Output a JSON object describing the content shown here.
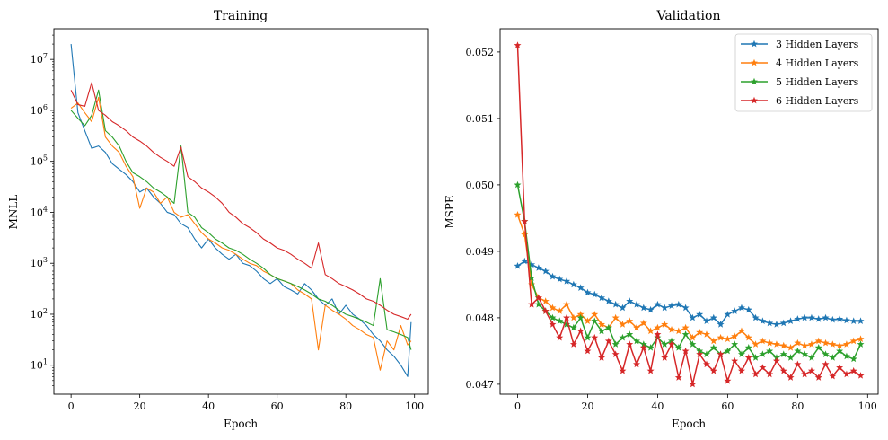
{
  "chart_data": [
    {
      "type": "line",
      "title": "Training",
      "xlabel": "Epoch",
      "ylabel": "MNLL",
      "yscale": "log",
      "xlim": [
        -5,
        104
      ],
      "ylim": [
        2.7,
        40000000
      ],
      "xticks": [
        0,
        20,
        40,
        60,
        80,
        100
      ],
      "yticks": [
        {
          "value": 10,
          "base": "10",
          "exp": "1"
        },
        {
          "value": 100,
          "base": "10",
          "exp": "2"
        },
        {
          "value": 1000,
          "base": "10",
          "exp": "3"
        },
        {
          "value": 10000,
          "base": "10",
          "exp": "4"
        },
        {
          "value": 100000,
          "base": "10",
          "exp": "5"
        },
        {
          "value": 1000000,
          "base": "10",
          "exp": "6"
        },
        {
          "value": 10000000,
          "base": "10",
          "exp": "7"
        }
      ],
      "series": [
        {
          "name": "3 Hidden Layers",
          "color": "#1f77b4",
          "x": [
            0,
            2,
            4,
            6,
            8,
            10,
            12,
            14,
            16,
            18,
            20,
            22,
            24,
            26,
            28,
            30,
            32,
            34,
            36,
            38,
            40,
            42,
            44,
            46,
            48,
            50,
            52,
            54,
            56,
            58,
            60,
            62,
            64,
            66,
            68,
            70,
            72,
            74,
            76,
            78,
            80,
            82,
            84,
            86,
            88,
            90,
            92,
            94,
            96,
            98,
            99
          ],
          "values": [
            20000000,
            900000,
            400000,
            180000,
            200000,
            150000,
            90000,
            70000,
            55000,
            40000,
            25000,
            30000,
            20000,
            15000,
            10000,
            9000,
            6000,
            5000,
            3000,
            2000,
            3000,
            2000,
            1500,
            1200,
            1500,
            1000,
            900,
            700,
            500,
            400,
            500,
            350,
            300,
            250,
            400,
            300,
            200,
            150,
            200,
            100,
            150,
            100,
            80,
            60,
            40,
            30,
            20,
            15,
            10,
            6,
            70
          ]
        },
        {
          "name": "4 Hidden Layers",
          "color": "#ff7f0e",
          "x": [
            0,
            2,
            4,
            6,
            8,
            10,
            12,
            14,
            16,
            18,
            20,
            22,
            24,
            26,
            28,
            30,
            32,
            34,
            36,
            38,
            40,
            42,
            44,
            46,
            48,
            50,
            52,
            54,
            56,
            58,
            60,
            62,
            64,
            66,
            68,
            70,
            72,
            74,
            76,
            78,
            80,
            82,
            84,
            86,
            88,
            90,
            92,
            94,
            96,
            98,
            99
          ],
          "values": [
            1100000,
            1400000,
            900000,
            600000,
            1800000,
            300000,
            200000,
            150000,
            80000,
            50000,
            12000,
            30000,
            25000,
            15000,
            20000,
            10000,
            8000,
            9000,
            6000,
            4000,
            3000,
            2500,
            2000,
            1800,
            1500,
            1200,
            1000,
            900,
            700,
            600,
            500,
            450,
            400,
            300,
            250,
            200,
            20,
            150,
            120,
            100,
            80,
            60,
            50,
            40,
            35,
            8,
            30,
            20,
            60,
            25,
            30
          ]
        },
        {
          "name": "5 Hidden Layers",
          "color": "#2ca02c",
          "x": [
            0,
            2,
            4,
            6,
            8,
            10,
            12,
            14,
            16,
            18,
            20,
            22,
            24,
            26,
            28,
            30,
            32,
            34,
            36,
            38,
            40,
            42,
            44,
            46,
            48,
            50,
            52,
            54,
            56,
            58,
            60,
            62,
            64,
            66,
            68,
            70,
            72,
            74,
            76,
            78,
            80,
            82,
            84,
            86,
            88,
            90,
            92,
            94,
            96,
            98,
            99
          ],
          "values": [
            1000000,
            700000,
            500000,
            800000,
            2500000,
            400000,
            300000,
            200000,
            100000,
            60000,
            50000,
            40000,
            30000,
            25000,
            20000,
            15000,
            200000,
            10000,
            8000,
            5000,
            4000,
            3000,
            2500,
            2000,
            1800,
            1500,
            1200,
            1000,
            800,
            600,
            500,
            450,
            400,
            350,
            300,
            250,
            200,
            180,
            150,
            120,
            100,
            90,
            80,
            70,
            60,
            500,
            50,
            45,
            40,
            35,
            20
          ]
        },
        {
          "name": "6 Hidden Layers",
          "color": "#d62728",
          "x": [
            0,
            2,
            4,
            6,
            8,
            10,
            12,
            14,
            16,
            18,
            20,
            22,
            24,
            26,
            28,
            30,
            32,
            34,
            36,
            38,
            40,
            42,
            44,
            46,
            48,
            50,
            52,
            54,
            56,
            58,
            60,
            62,
            64,
            66,
            68,
            70,
            72,
            74,
            76,
            78,
            80,
            82,
            84,
            86,
            88,
            90,
            92,
            94,
            96,
            98,
            99
          ],
          "values": [
            2500000,
            1300000,
            1200000,
            3500000,
            1000000,
            800000,
            600000,
            500000,
            400000,
            300000,
            250000,
            200000,
            150000,
            120000,
            100000,
            80000,
            190000,
            50000,
            40000,
            30000,
            25000,
            20000,
            15000,
            10000,
            8000,
            6000,
            5000,
            4000,
            3000,
            2500,
            2000,
            1800,
            1500,
            1200,
            1000,
            800,
            2500,
            600,
            500,
            400,
            350,
            300,
            250,
            200,
            180,
            150,
            120,
            100,
            90,
            80,
            100
          ]
        }
      ]
    },
    {
      "type": "line",
      "title": "Validation",
      "xlabel": "Epoch",
      "ylabel": "MSPE",
      "xlim": [
        -5,
        103
      ],
      "ylim": [
        0.04685,
        0.05235
      ],
      "xticks": [
        0,
        20,
        40,
        60,
        80,
        100
      ],
      "yticks": [
        0.047,
        0.048,
        0.049,
        0.05,
        0.051,
        0.052
      ],
      "yticklabels": [
        "0.047",
        "0.048",
        "0.049",
        "0.050",
        "0.051",
        "0.052"
      ],
      "legend_position": "top-right",
      "marker": "star",
      "series": [
        {
          "name": "3 Hidden Layers",
          "color": "#1f77b4",
          "x": [
            0,
            2,
            4,
            6,
            8,
            10,
            12,
            14,
            16,
            18,
            20,
            22,
            24,
            26,
            28,
            30,
            32,
            34,
            36,
            38,
            40,
            42,
            44,
            46,
            48,
            50,
            52,
            54,
            56,
            58,
            60,
            62,
            64,
            66,
            68,
            70,
            72,
            74,
            76,
            78,
            80,
            82,
            84,
            86,
            88,
            90,
            92,
            94,
            96,
            98
          ],
          "values": [
            0.04878,
            0.04885,
            0.0488,
            0.04875,
            0.0487,
            0.04862,
            0.04858,
            0.04855,
            0.0485,
            0.04845,
            0.04838,
            0.04835,
            0.0483,
            0.04825,
            0.0482,
            0.04815,
            0.04825,
            0.0482,
            0.04815,
            0.04812,
            0.0482,
            0.04815,
            0.04818,
            0.0482,
            0.04815,
            0.048,
            0.04805,
            0.04795,
            0.048,
            0.0479,
            0.04805,
            0.0481,
            0.04815,
            0.04812,
            0.048,
            0.04795,
            0.04792,
            0.0479,
            0.04792,
            0.04795,
            0.04798,
            0.048,
            0.048,
            0.04798,
            0.048,
            0.04797,
            0.04798,
            0.04796,
            0.04795,
            0.04795
          ]
        },
        {
          "name": "4 Hidden Layers",
          "color": "#ff7f0e",
          "x": [
            0,
            2,
            4,
            6,
            8,
            10,
            12,
            14,
            16,
            18,
            20,
            22,
            24,
            26,
            28,
            30,
            32,
            34,
            36,
            38,
            40,
            42,
            44,
            46,
            48,
            50,
            52,
            54,
            56,
            58,
            60,
            62,
            64,
            66,
            68,
            70,
            72,
            74,
            76,
            78,
            80,
            82,
            84,
            86,
            88,
            90,
            92,
            94,
            96,
            98
          ],
          "values": [
            0.04955,
            0.04925,
            0.0485,
            0.0483,
            0.04825,
            0.04815,
            0.0481,
            0.0482,
            0.048,
            0.04805,
            0.04795,
            0.04805,
            0.0479,
            0.04785,
            0.048,
            0.0479,
            0.04795,
            0.04785,
            0.04792,
            0.0478,
            0.04785,
            0.0479,
            0.04782,
            0.0478,
            0.04785,
            0.0477,
            0.04778,
            0.04775,
            0.04765,
            0.0477,
            0.04768,
            0.04772,
            0.0478,
            0.0477,
            0.0476,
            0.04765,
            0.04762,
            0.0476,
            0.04758,
            0.04755,
            0.04762,
            0.04758,
            0.0476,
            0.04765,
            0.04762,
            0.0476,
            0.04758,
            0.0476,
            0.04765,
            0.04768
          ]
        },
        {
          "name": "5 Hidden Layers",
          "color": "#2ca02c",
          "x": [
            0,
            2,
            4,
            6,
            8,
            10,
            12,
            14,
            16,
            18,
            20,
            22,
            24,
            26,
            28,
            30,
            32,
            34,
            36,
            38,
            40,
            42,
            44,
            46,
            48,
            50,
            52,
            54,
            56,
            58,
            60,
            62,
            64,
            66,
            68,
            70,
            72,
            74,
            76,
            78,
            80,
            82,
            84,
            86,
            88,
            90,
            92,
            94,
            96,
            98
          ],
          "values": [
            0.05,
            0.04945,
            0.0486,
            0.0482,
            0.0481,
            0.048,
            0.04795,
            0.0479,
            0.04785,
            0.048,
            0.0477,
            0.04795,
            0.0478,
            0.04785,
            0.0476,
            0.0477,
            0.04775,
            0.04765,
            0.0476,
            0.04755,
            0.0477,
            0.0476,
            0.04765,
            0.04755,
            0.04775,
            0.0476,
            0.0475,
            0.04745,
            0.04755,
            0.04745,
            0.0475,
            0.0476,
            0.04745,
            0.04755,
            0.0474,
            0.04745,
            0.0475,
            0.0474,
            0.04745,
            0.0474,
            0.0475,
            0.04745,
            0.0474,
            0.04755,
            0.04745,
            0.0474,
            0.0475,
            0.04742,
            0.04738,
            0.0476
          ]
        },
        {
          "name": "6 Hidden Layers",
          "color": "#d62728",
          "x": [
            0,
            2,
            4,
            6,
            8,
            10,
            12,
            14,
            16,
            18,
            20,
            22,
            24,
            26,
            28,
            30,
            32,
            34,
            36,
            38,
            40,
            42,
            44,
            46,
            48,
            50,
            52,
            54,
            56,
            58,
            60,
            62,
            64,
            66,
            68,
            70,
            72,
            74,
            76,
            78,
            80,
            82,
            84,
            86,
            88,
            90,
            92,
            94,
            96,
            98
          ],
          "values": [
            0.0521,
            0.04945,
            0.0482,
            0.0483,
            0.0481,
            0.0479,
            0.0477,
            0.048,
            0.0476,
            0.0478,
            0.0475,
            0.0477,
            0.0474,
            0.04765,
            0.04745,
            0.0472,
            0.0476,
            0.0473,
            0.04755,
            0.0472,
            0.04775,
            0.0474,
            0.0476,
            0.0471,
            0.0475,
            0.047,
            0.04745,
            0.0473,
            0.0472,
            0.04745,
            0.04705,
            0.04735,
            0.0472,
            0.0474,
            0.04715,
            0.04725,
            0.04715,
            0.04735,
            0.0472,
            0.0471,
            0.0473,
            0.04715,
            0.0472,
            0.0471,
            0.0473,
            0.04712,
            0.04725,
            0.04715,
            0.0472,
            0.04713
          ]
        }
      ]
    }
  ]
}
